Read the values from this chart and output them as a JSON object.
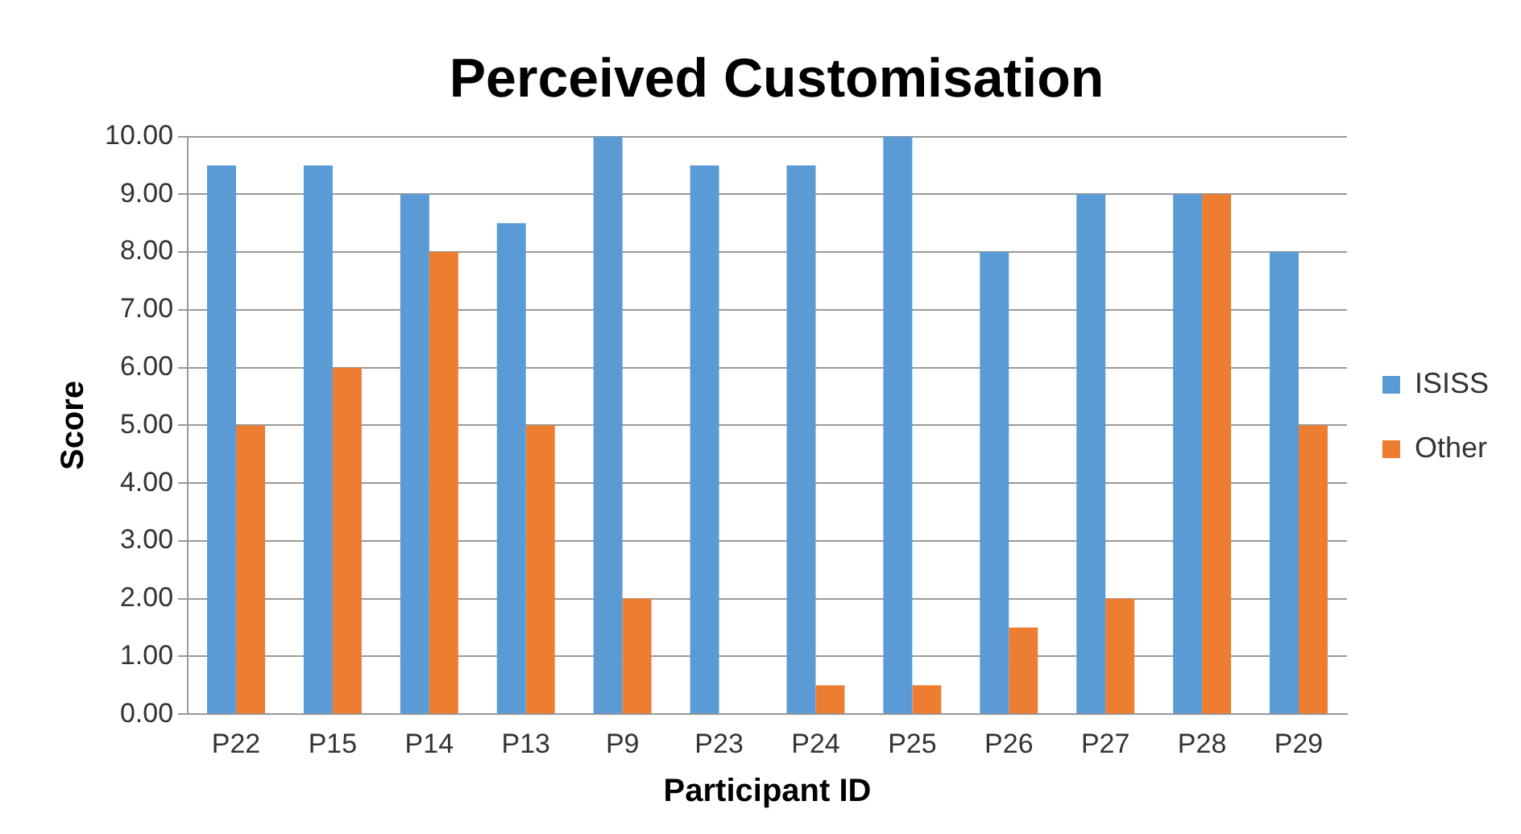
{
  "chart_data": {
    "type": "bar",
    "title": "Perceived Customisation",
    "xlabel": "Participant ID",
    "ylabel": "Score",
    "categories": [
      "P22",
      "P15",
      "P14",
      "P13",
      "P9",
      "P23",
      "P24",
      "P25",
      "P26",
      "P27",
      "P28",
      "P29"
    ],
    "series": [
      {
        "name": "ISISS",
        "color": "#5b9bd5",
        "values": [
          9.5,
          9.5,
          9,
          8.5,
          10,
          9.5,
          9.5,
          10,
          8,
          9,
          9,
          8
        ]
      },
      {
        "name": "Other",
        "color": "#ed7d31",
        "values": [
          5,
          6,
          8,
          5,
          2,
          0,
          0.5,
          0.5,
          1.5,
          2,
          9,
          5
        ]
      }
    ],
    "ylim": [
      0,
      10
    ],
    "yticks": [
      {
        "value": 0,
        "label": "0.00"
      },
      {
        "value": 1,
        "label": "1.00"
      },
      {
        "value": 2,
        "label": "2.00"
      },
      {
        "value": 3,
        "label": "3.00"
      },
      {
        "value": 4,
        "label": "4.00"
      },
      {
        "value": 5,
        "label": "5.00"
      },
      {
        "value": 6,
        "label": "6.00"
      },
      {
        "value": 7,
        "label": "7.00"
      },
      {
        "value": 8,
        "label": "8.00"
      },
      {
        "value": 9,
        "label": "9.00"
      },
      {
        "value": 10,
        "label": "10.00"
      }
    ],
    "grid": "y",
    "legend": "right"
  }
}
